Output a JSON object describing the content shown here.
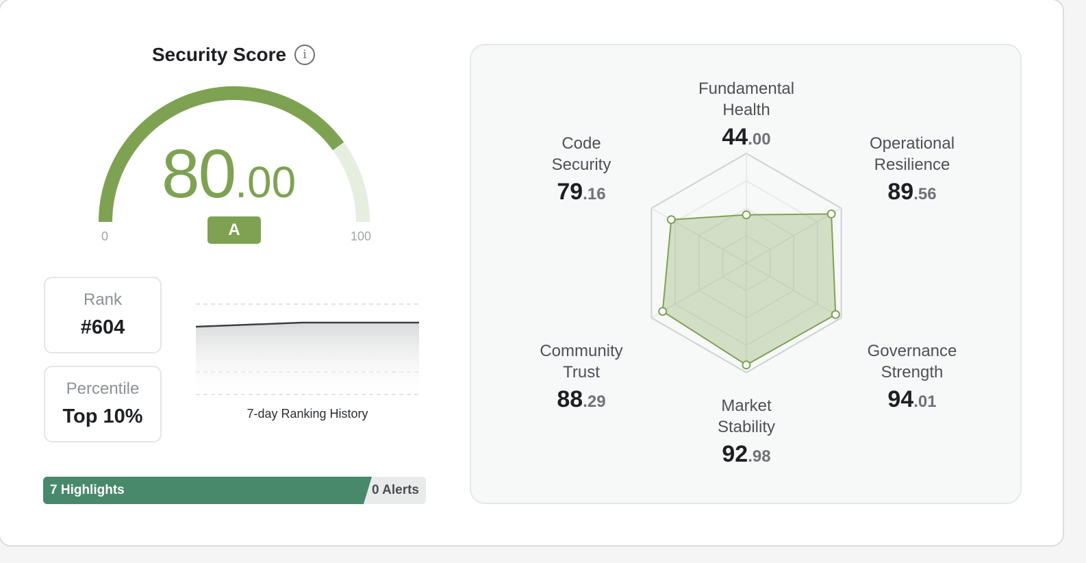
{
  "score_card": {
    "title": "Security Score",
    "info_icon": "info-circle-icon",
    "score_int": "80",
    "score_dec": ".00",
    "score_value": 80,
    "grade": "A",
    "scale_min": "0",
    "scale_max": "100",
    "accent_color": "#7ea252"
  },
  "rank": {
    "label": "Rank",
    "value": "#604"
  },
  "percentile": {
    "label": "Percentile",
    "value": "Top 10%"
  },
  "history": {
    "label": "7-day Ranking History"
  },
  "highlights": {
    "highlights_label": "7 Highlights",
    "alerts_label": "0 Alerts",
    "highlights_count": 7,
    "alerts_count": 0,
    "highlight_color": "#49896b"
  },
  "radar": {
    "axes": [
      {
        "name": "Fundamental Health",
        "int": "44",
        "dec": ".00",
        "value": 44.0
      },
      {
        "name": "Operational Resilience",
        "int": "89",
        "dec": ".56",
        "value": 89.56
      },
      {
        "name": "Governance Strength",
        "int": "94",
        "dec": ".01",
        "value": 94.01
      },
      {
        "name": "Market Stability",
        "int": "92",
        "dec": ".98",
        "value": 92.98
      },
      {
        "name": "Community Trust",
        "int": "88",
        "dec": ".29",
        "value": 88.29
      },
      {
        "name": "Code Security",
        "int": "79",
        "dec": ".16",
        "value": 79.16
      }
    ],
    "max": 100,
    "fill_color": "#7ea252"
  }
}
